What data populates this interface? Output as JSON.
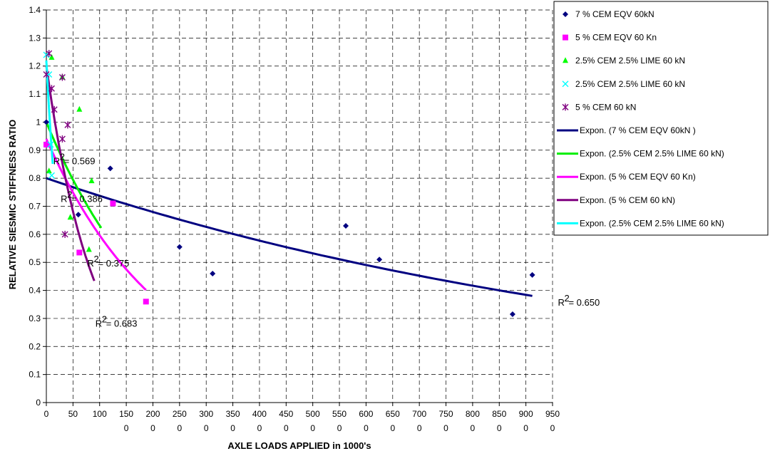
{
  "chart_data": {
    "type": "scatter",
    "title": "",
    "xlabel": "AXLE LOADS APPLIED in 1000's",
    "ylabel": "RELATIVE SIESMIC STIFFNESS RATIO",
    "xlim": [
      0,
      950
    ],
    "ylim": [
      0,
      1.4
    ],
    "x_ticks": [
      {
        "v": 0,
        "l1": "0",
        "l2": ""
      },
      {
        "v": 50,
        "l1": "50",
        "l2": ""
      },
      {
        "v": 100,
        "l1": "100",
        "l2": ""
      },
      {
        "v": 150,
        "l1": "150",
        "l2": "0"
      },
      {
        "v": 200,
        "l1": "200",
        "l2": "0"
      },
      {
        "v": 250,
        "l1": "250",
        "l2": "0"
      },
      {
        "v": 300,
        "l1": "300",
        "l2": "0"
      },
      {
        "v": 350,
        "l1": "350",
        "l2": "0"
      },
      {
        "v": 400,
        "l1": "400",
        "l2": "0"
      },
      {
        "v": 450,
        "l1": "450",
        "l2": "0"
      },
      {
        "v": 500,
        "l1": "500",
        "l2": "0"
      },
      {
        "v": 550,
        "l1": "550",
        "l2": "0"
      },
      {
        "v": 600,
        "l1": "600",
        "l2": "0"
      },
      {
        "v": 650,
        "l1": "650",
        "l2": "0"
      },
      {
        "v": 700,
        "l1": "700",
        "l2": "0"
      },
      {
        "v": 750,
        "l1": "750",
        "l2": "0"
      },
      {
        "v": 800,
        "l1": "800",
        "l2": "0"
      },
      {
        "v": 850,
        "l1": "850",
        "l2": "0"
      },
      {
        "v": 900,
        "l1": "900",
        "l2": "0"
      },
      {
        "v": 950,
        "l1": "950",
        "l2": "0"
      }
    ],
    "y_ticks": [
      "0",
      "0.1",
      "0.2",
      "0.3",
      "0.4",
      "0.5",
      "0.6",
      "0.7",
      "0.8",
      "0.9",
      "1",
      "1.1",
      "1.2",
      "1.3",
      "1.4"
    ],
    "grid": true,
    "legend_position": "top-right",
    "series": [
      {
        "name": "7 % CEM EQV 60kN",
        "marker": "diamond",
        "color": "#000080",
        "points": [
          [
            0,
            1.0
          ],
          [
            120,
            0.835
          ],
          [
            60,
            0.67
          ],
          [
            250,
            0.555
          ],
          [
            312,
            0.46
          ],
          [
            562,
            0.63
          ],
          [
            625,
            0.51
          ],
          [
            875,
            0.315
          ],
          [
            912,
            0.455
          ]
        ]
      },
      {
        "name": "5 % CEM EQV 60 Kn",
        "marker": "square",
        "color": "#ff00ff",
        "points": [
          [
            0,
            0.92
          ],
          [
            62,
            0.535
          ],
          [
            125,
            0.71
          ],
          [
            187,
            0.36
          ]
        ]
      },
      {
        "name": "2.5% CEM 2.5% LIME 60 kN",
        "marker": "triangle",
        "color": "#00ff00",
        "points": [
          [
            10,
            1.23
          ],
          [
            30,
            1.16
          ],
          [
            62,
            1.045
          ],
          [
            45,
            0.66
          ],
          [
            85,
            0.79
          ],
          [
            80,
            0.545
          ],
          [
            5,
            0.825
          ]
        ]
      },
      {
        "name": "2.5% CEM 2.5% LIME 60 kN",
        "marker": "x",
        "color": "#00ffff",
        "points": [
          [
            0,
            1.24
          ],
          [
            5,
            1.17
          ],
          [
            8,
            0.92
          ],
          [
            10,
            0.81
          ]
        ]
      },
      {
        "name": "5 % CEM 60 kN",
        "marker": "star",
        "color": "#800080",
        "points": [
          [
            5,
            1.245
          ],
          [
            10,
            1.12
          ],
          [
            15,
            1.045
          ],
          [
            30,
            1.16
          ],
          [
            30,
            0.94
          ],
          [
            0,
            1.17
          ],
          [
            35,
            0.6
          ],
          [
            40,
            0.99
          ]
        ]
      }
    ],
    "trendlines": [
      {
        "name": "Expon. (7 % CEM EQV 60kN )",
        "color": "#000080",
        "a": 0.8,
        "b": -0.000815,
        "x0": 0,
        "x1": 912
      },
      {
        "name": "Expon. (2.5% CEM 2.5% LIME 60 kN)",
        "color": "#00ee00",
        "a": 1.0,
        "b": -0.0046,
        "x0": 0,
        "x1": 103
      },
      {
        "name": "Expon. (5 % CEM EQV 60 Kn)",
        "color": "#ff00ff",
        "a": 0.94,
        "b": -0.00455,
        "x0": 0,
        "x1": 187
      },
      {
        "name": "Expon. (5 % CEM 60 kN)",
        "color": "#800080",
        "a": 1.2,
        "b": -0.0113,
        "x0": 0,
        "x1": 90
      },
      {
        "name": "Expon. (2.5% CEM 2.5% LIME 60 kN)",
        "color": "#00ffff",
        "a": 1.22,
        "b": -0.03,
        "x0": 0,
        "x1": 12
      }
    ],
    "annotations": [
      {
        "text": "= 0.569",
        "x": 13,
        "y": 0.85
      },
      {
        "text": "= 0.386",
        "x": 27,
        "y": 0.715
      },
      {
        "text": "= 0.375",
        "x": 77,
        "y": 0.485
      },
      {
        "text": "= 0.683",
        "x": 92,
        "y": 0.27
      },
      {
        "text": "= 0.650",
        "x": 960,
        "y": 0.345
      }
    ]
  }
}
